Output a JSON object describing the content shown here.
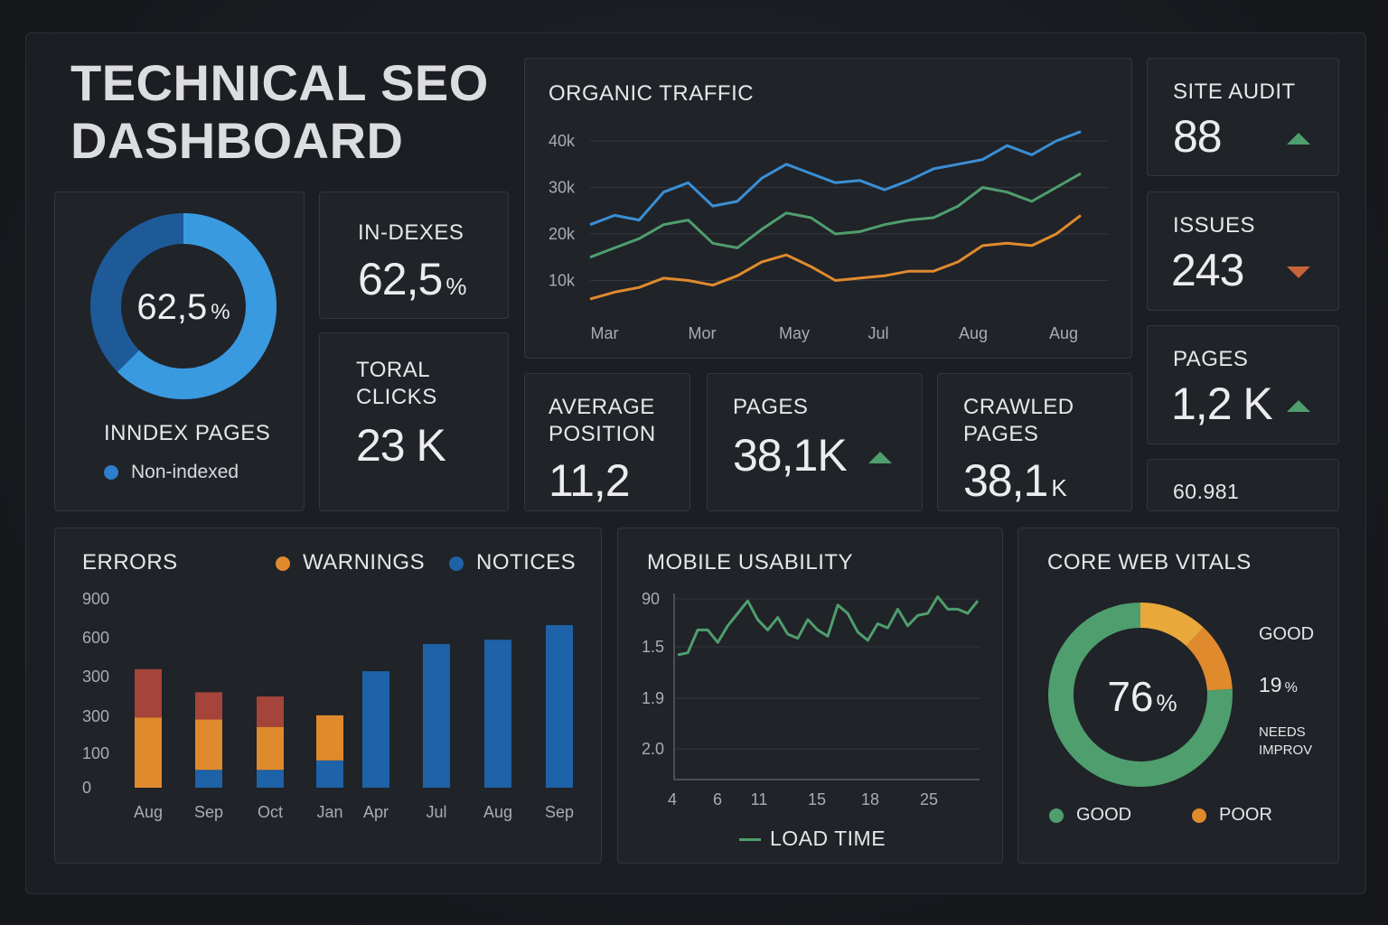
{
  "header": {
    "title_line1": "TECHNICAL SEO",
    "title_line2": "DASHBOARD"
  },
  "colors": {
    "blue": "#3a8fd6",
    "green": "#4f9e6e",
    "orange": "#e08a2e",
    "red": "#a4443a",
    "dark_blue": "#1e62a8"
  },
  "index_card": {
    "donut_value": "62,5",
    "donut_unit": "%",
    "indexed_fraction": 0.625,
    "label": "INNDEX  PAGES",
    "legend": "Non-indexed",
    "legend_icon": "dot-icon"
  },
  "indexes_card": {
    "label": "IN-DEXES",
    "value": "62,5",
    "unit": "%"
  },
  "clicks_card": {
    "label_line1": "TORAL",
    "label_line2": "CLICKS",
    "value": "23 K"
  },
  "position_card": {
    "label_line1": "AVERAGE",
    "label_line2": "POSITION",
    "value": "11,2"
  },
  "pages_card": {
    "label": "PAGES",
    "value": "38,1K",
    "trend_icon": "arrow-up-icon"
  },
  "crawled_card": {
    "label_line1": "CRAWLED",
    "label_line2": "PAGES",
    "value": "38,1",
    "unit": "K"
  },
  "site_audit": {
    "label": "SITE AUDIT",
    "value": "88",
    "trend_icon": "arrow-up-icon"
  },
  "issues": {
    "label": "ISSUES",
    "value": "243",
    "trend_icon": "arrow-down-icon"
  },
  "pages_side": {
    "label": "PAGES",
    "value": "1,2 K",
    "trend_icon": "arrow-up-icon"
  },
  "extra_value": "60.981",
  "chart_data": [
    {
      "id": "organic_traffic",
      "type": "line",
      "title": "ORGANIC TRAFFIC",
      "x_tick_labels": [
        "Mar",
        "Mor",
        "May",
        "Jul",
        "Aug",
        "Aug"
      ],
      "y_tick_labels": [
        "40k",
        "30k",
        "20k",
        "10k"
      ],
      "ylim": [
        0,
        45000
      ],
      "grid": true,
      "series": [
        {
          "name": "series-blue",
          "color": "#3a8fd6",
          "values": [
            22000,
            24000,
            23000,
            29000,
            31000,
            26000,
            27000,
            32000,
            35000,
            33000,
            31000,
            31500,
            29500,
            31500,
            34000,
            35000,
            36000,
            39000,
            37000,
            40000,
            42000
          ]
        },
        {
          "name": "series-green",
          "color": "#4f9e6e",
          "values": [
            15000,
            17000,
            19000,
            22000,
            23000,
            18000,
            17000,
            21000,
            24500,
            23500,
            20000,
            20500,
            22000,
            23000,
            23500,
            26000,
            30000,
            29000,
            27000,
            30000,
            33000
          ]
        },
        {
          "name": "series-orange",
          "color": "#e08a2e",
          "values": [
            6000,
            7500,
            8500,
            10500,
            10000,
            9000,
            11000,
            14000,
            15500,
            13000,
            10000,
            10500,
            11000,
            12000,
            12000,
            14000,
            17500,
            18000,
            17500,
            20000,
            24000
          ]
        }
      ]
    },
    {
      "id": "site_errors",
      "type": "bar",
      "title": "ERRORS",
      "legend": [
        {
          "label": "WARNINGS",
          "color": "#e08a2e"
        },
        {
          "label": "NOTICES",
          "color": "#1e62a8"
        }
      ],
      "categories": [
        "Aug",
        "Sep",
        "Oct",
        "Jan",
        "Apr",
        "Jul",
        "Aug",
        "Sep"
      ],
      "y_tick_labels": [
        "900",
        "600",
        "300",
        "300",
        "100",
        "0"
      ],
      "ylim": [
        0,
        900
      ],
      "series": [
        {
          "name": "notices",
          "color": "#1e62a8",
          "values": [
            0,
            85,
            85,
            130,
            555,
            685,
            705,
            775
          ]
        },
        {
          "name": "warnings",
          "color": "#e08a2e",
          "values": [
            335,
            240,
            205,
            215,
            0,
            0,
            0,
            0
          ]
        },
        {
          "name": "errors",
          "color": "#a4443a",
          "values": [
            230,
            130,
            145,
            0,
            0,
            0,
            0,
            0
          ]
        }
      ]
    },
    {
      "id": "mobile_usability",
      "type": "line",
      "title": "MOBILE USABILITY",
      "x_tick_labels": [
        "4",
        "6",
        "11",
        "15",
        "18",
        "25"
      ],
      "y_tick_labels": [
        "90",
        "1.5",
        "1.9",
        "2.0"
      ],
      "ylim": [
        0,
        100
      ],
      "series": [
        {
          "name": "LOAD TIME",
          "color": "#4f9e6e",
          "values": [
            60,
            61,
            72,
            72,
            66,
            74,
            80,
            86,
            77,
            72,
            78,
            70,
            68,
            77,
            72,
            69,
            84,
            80,
            71,
            67,
            75,
            73,
            82,
            74,
            79,
            80,
            88,
            82,
            82,
            80,
            86
          ]
        }
      ]
    },
    {
      "id": "core_web_vitals",
      "type": "pie",
      "title": "CORE WEB VITALS",
      "center_value": "76",
      "center_unit": "%",
      "slices": [
        {
          "label": "GOOD",
          "value": 76,
          "color": "#4f9e6e"
        },
        {
          "label": "POOR",
          "value": 12,
          "color": "#e08a2e"
        },
        {
          "label": "NEEDS IMPROV",
          "value": 12,
          "color": "#e8a83a"
        }
      ],
      "side_labels": {
        "good": "GOOD",
        "pct": "19",
        "pct_unit": "%",
        "needs_line1": "NEEDS",
        "needs_line2": "IMPROV"
      },
      "legend": [
        {
          "label": "GOOD",
          "color": "#4f9e6e"
        },
        {
          "label": "POOR",
          "color": "#e08a2e"
        }
      ]
    }
  ]
}
